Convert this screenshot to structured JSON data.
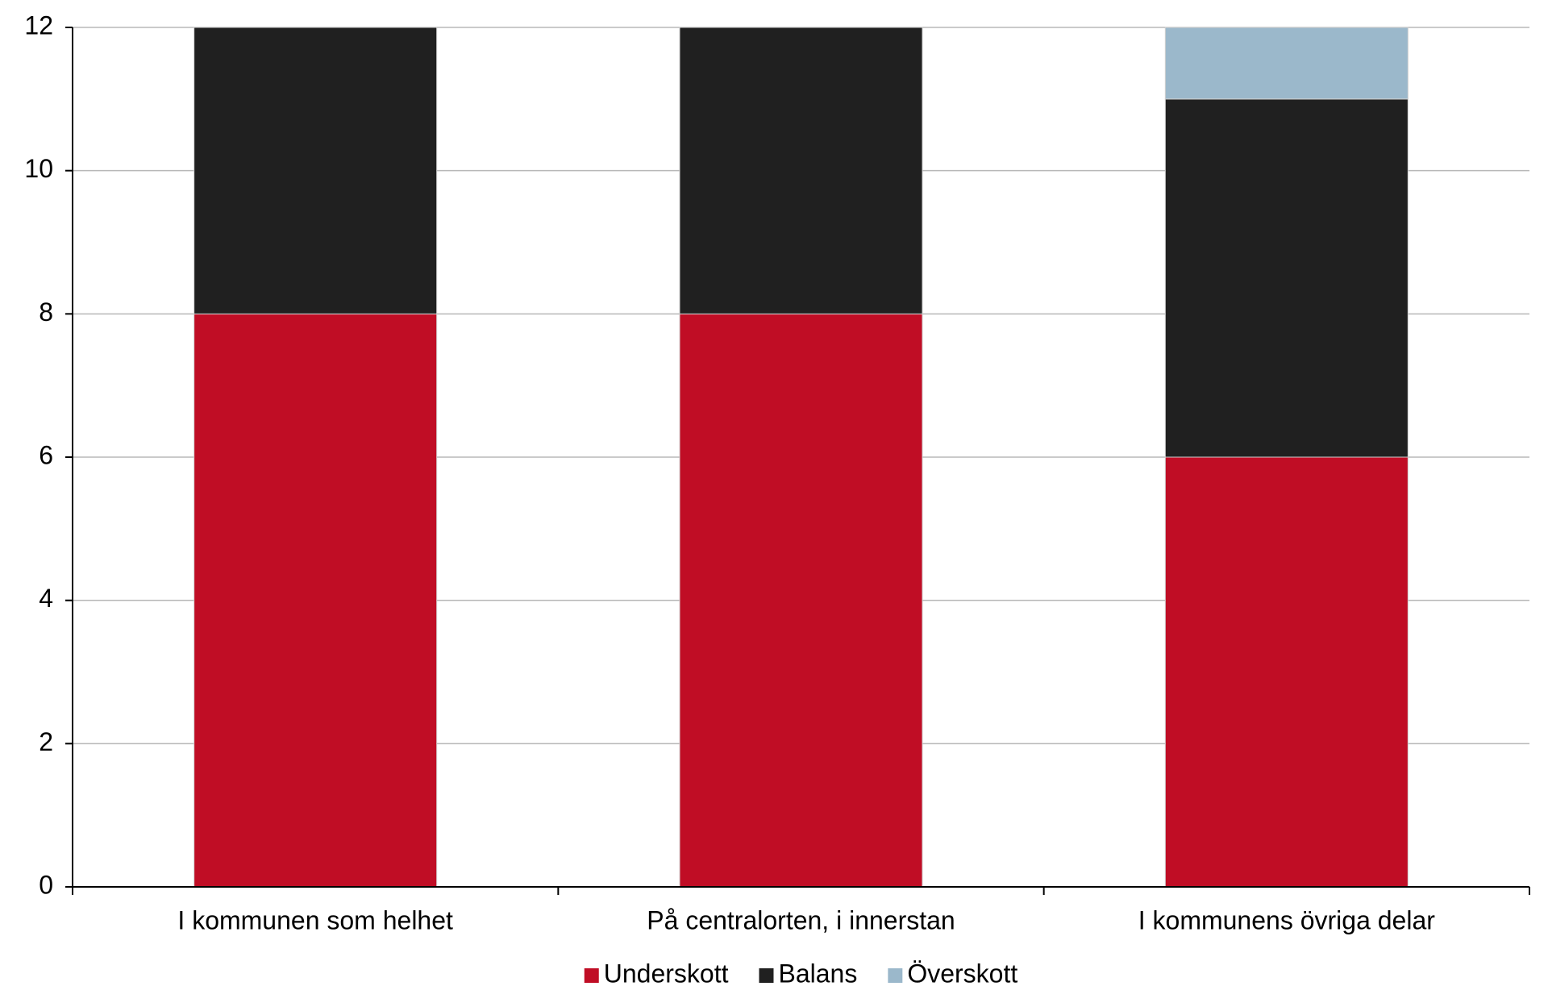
{
  "chart_data": {
    "type": "stacked_bar",
    "categories": [
      "I kommunen som helhet",
      "På centralorten, i innerstan",
      "I kommunens övriga delar"
    ],
    "series": [
      {
        "name": "Underskott",
        "color": "#c00d25",
        "values": [
          8,
          8,
          6
        ]
      },
      {
        "name": "Balans",
        "color": "#202020",
        "values": [
          4,
          4,
          5
        ]
      },
      {
        "name": "Överskott",
        "color": "#9bb8cb",
        "values": [
          0,
          0,
          1
        ]
      }
    ],
    "ylim": [
      0,
      12
    ],
    "yticks": [
      0,
      2,
      4,
      6,
      8,
      10,
      12
    ],
    "grid": true,
    "legend": "bottom"
  }
}
